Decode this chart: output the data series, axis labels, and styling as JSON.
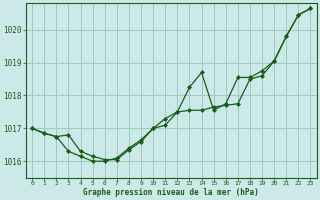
{
  "title": "Graphe pression niveau de la mer (hPa)",
  "bg_color": "#cce8e8",
  "grid_color": "#99ccbb",
  "line_color": "#1a5c1a",
  "marker_color": "#1a5c1a",
  "xlim": [
    -0.5,
    23.5
  ],
  "ylim": [
    1015.5,
    1020.8
  ],
  "yticks": [
    1016,
    1017,
    1018,
    1019,
    1020
  ],
  "xtick_labels": [
    "0",
    "1",
    "2",
    "3",
    "4",
    "5",
    "6",
    "7",
    "8",
    "9",
    "10",
    "11",
    "12",
    "13",
    "14",
    "15",
    "16",
    "17",
    "18",
    "19",
    "20",
    "21",
    "22",
    "23"
  ],
  "xticks": [
    0,
    1,
    2,
    3,
    4,
    5,
    6,
    7,
    8,
    9,
    10,
    11,
    12,
    13,
    14,
    15,
    16,
    17,
    18,
    19,
    20,
    21,
    22,
    23
  ],
  "series1_x": [
    0,
    1,
    2,
    3,
    4,
    5,
    6,
    7,
    8,
    9,
    10,
    11,
    12,
    13,
    14,
    15,
    16,
    17,
    18,
    19,
    20,
    21,
    22,
    23
  ],
  "series1_y": [
    1017.0,
    1016.85,
    1016.75,
    1016.8,
    1016.3,
    1016.15,
    1016.05,
    1016.05,
    1016.35,
    1016.6,
    1017.0,
    1017.3,
    1017.5,
    1017.55,
    1017.55,
    1017.65,
    1017.7,
    1017.75,
    1018.5,
    1018.6,
    1019.05,
    1019.8,
    1020.45,
    1020.65
  ],
  "series2_x": [
    0,
    1,
    2,
    3,
    4,
    5,
    6,
    7,
    8,
    9,
    10,
    11,
    12,
    13,
    14,
    15,
    16,
    17,
    18,
    19,
    20,
    21,
    22,
    23
  ],
  "series2_y": [
    1017.0,
    1016.85,
    1016.75,
    1016.3,
    1016.15,
    1016.0,
    1016.0,
    1016.1,
    1016.4,
    1016.65,
    1017.0,
    1017.1,
    1017.5,
    1018.25,
    1018.7,
    1017.55,
    1017.75,
    1018.55,
    1018.55,
    1018.75,
    1019.05,
    1019.8,
    1020.45,
    1020.65
  ]
}
